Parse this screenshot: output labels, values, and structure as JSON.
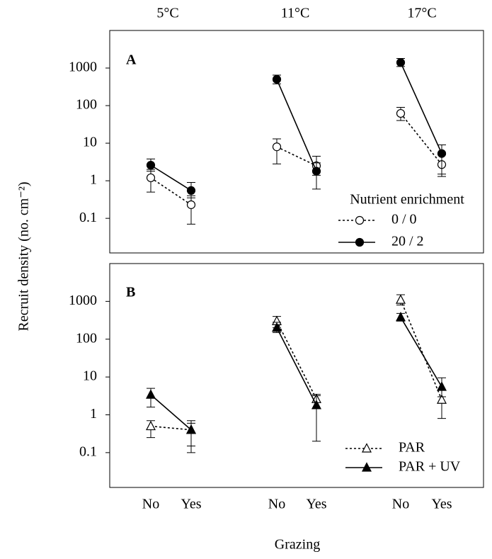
{
  "column_titles": [
    "5°C",
    "11°C",
    "17°C"
  ],
  "categories": [
    "No",
    "Yes",
    "No",
    "Yes",
    "No",
    "Yes"
  ],
  "x_label": "Grazing",
  "y_label": "Recruit density (no. cm⁻²)",
  "chart_data": [
    {
      "type": "line",
      "panel": "A",
      "log_y": true,
      "ylim": [
        0.012,
        10000
      ],
      "yticks": [
        0.1,
        1,
        10,
        100,
        1000
      ],
      "legend_title": "Nutrient enrichment",
      "legend": "lower right",
      "series": [
        {
          "name": "0 / 0",
          "color": "#000000",
          "line_style": "dotted",
          "marker": "circle",
          "marker_fill": "white",
          "values": [
            1.2,
            0.23,
            8,
            2.5,
            62,
            2.7
          ],
          "lower": [
            0.5,
            0.07,
            2.8,
            1.4,
            40,
            1.3
          ],
          "upper": [
            2,
            0.4,
            13,
            4.5,
            90,
            5
          ]
        },
        {
          "name": "20 / 2",
          "color": "#000000",
          "line_style": "solid",
          "marker": "circle",
          "marker_fill": "black",
          "values": [
            2.6,
            0.55,
            500,
            1.8,
            1400,
            5.3
          ],
          "lower": [
            1.8,
            0.35,
            380,
            0.6,
            1100,
            1.5
          ],
          "upper": [
            3.8,
            0.9,
            650,
            3,
            1800,
            9
          ]
        }
      ]
    },
    {
      "type": "line",
      "panel": "B",
      "log_y": true,
      "ylim": [
        0.012,
        10000
      ],
      "yticks": [
        0.1,
        1,
        10,
        100,
        1000
      ],
      "legend": "lower right",
      "series": [
        {
          "name": "PAR",
          "color": "#000000",
          "line_style": "dotted",
          "marker": "triangle",
          "marker_fill": "white",
          "values": [
            0.5,
            0.4,
            300,
            2.6,
            1100,
            2.5
          ],
          "lower": [
            0.25,
            0.15,
            200,
            1.5,
            800,
            0.8
          ],
          "upper": [
            0.7,
            0.7,
            400,
            3.2,
            1500,
            4.5
          ]
        },
        {
          "name": "PAR + UV",
          "color": "#000000",
          "line_style": "solid",
          "marker": "triangle",
          "marker_fill": "black",
          "values": [
            3.4,
            0.4,
            200,
            1.8,
            380,
            5.5
          ],
          "lower": [
            1.6,
            0.1,
            150,
            0.2,
            300,
            3
          ],
          "upper": [
            5,
            0.6,
            280,
            3.5,
            480,
            9.5
          ]
        }
      ]
    }
  ]
}
